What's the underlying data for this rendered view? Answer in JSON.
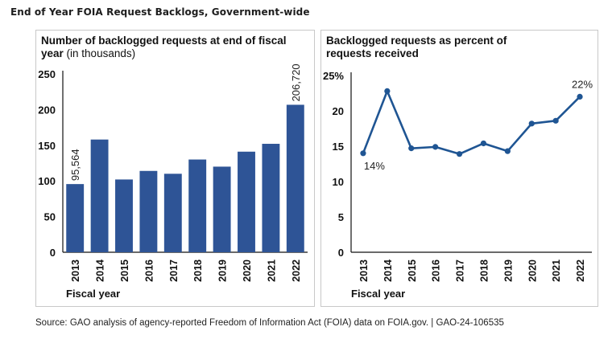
{
  "page": {
    "title": "End of Year FOIA Request Backlogs, Government-wide",
    "source": "Source: GAO analysis of agency-reported Freedom of Information Act (FOIA) data on FOIA.gov.  |  GAO-24-106535"
  },
  "colors": {
    "bar": "#2e5496",
    "line": "#1f5593",
    "axis": "#111111",
    "panel_border": "#c8c8c8"
  },
  "chart_data": [
    {
      "type": "bar",
      "title": "Number of backlogged requests at end of fiscal",
      "title_line2": "year",
      "title_suffix": "(in thousands)",
      "xlabel": "Fiscal year",
      "ylabel": "",
      "ylim": [
        0,
        250
      ],
      "yticks": [
        0,
        50,
        100,
        150,
        200,
        250
      ],
      "categories": [
        "2013",
        "2014",
        "2015",
        "2016",
        "2017",
        "2018",
        "2019",
        "2020",
        "2021",
        "2022"
      ],
      "values": [
        95.564,
        158,
        102,
        114,
        110,
        130,
        120,
        141,
        152,
        206.72
      ],
      "data_labels": [
        {
          "index": 0,
          "text": "95,564"
        },
        {
          "index": 9,
          "text": "206,720"
        }
      ],
      "grid": false
    },
    {
      "type": "line",
      "title": "Backlogged requests as percent of",
      "title_line2": "requests received",
      "xlabel": "Fiscal year",
      "ylabel": "",
      "ylim": [
        0,
        25
      ],
      "yticks": [
        0,
        5,
        10,
        15,
        20,
        25
      ],
      "ytick_labels": [
        "0",
        "5",
        "10",
        "15",
        "20",
        "25%"
      ],
      "categories": [
        "2013",
        "2014",
        "2015",
        "2016",
        "2017",
        "2018",
        "2019",
        "2020",
        "2021",
        "2022"
      ],
      "values": [
        14,
        22.8,
        14.7,
        14.9,
        13.9,
        15.4,
        14.3,
        18.2,
        18.6,
        22
      ],
      "data_labels": [
        {
          "index": 0,
          "text": "14%"
        },
        {
          "index": 9,
          "text": "22%"
        }
      ],
      "grid": false
    }
  ]
}
